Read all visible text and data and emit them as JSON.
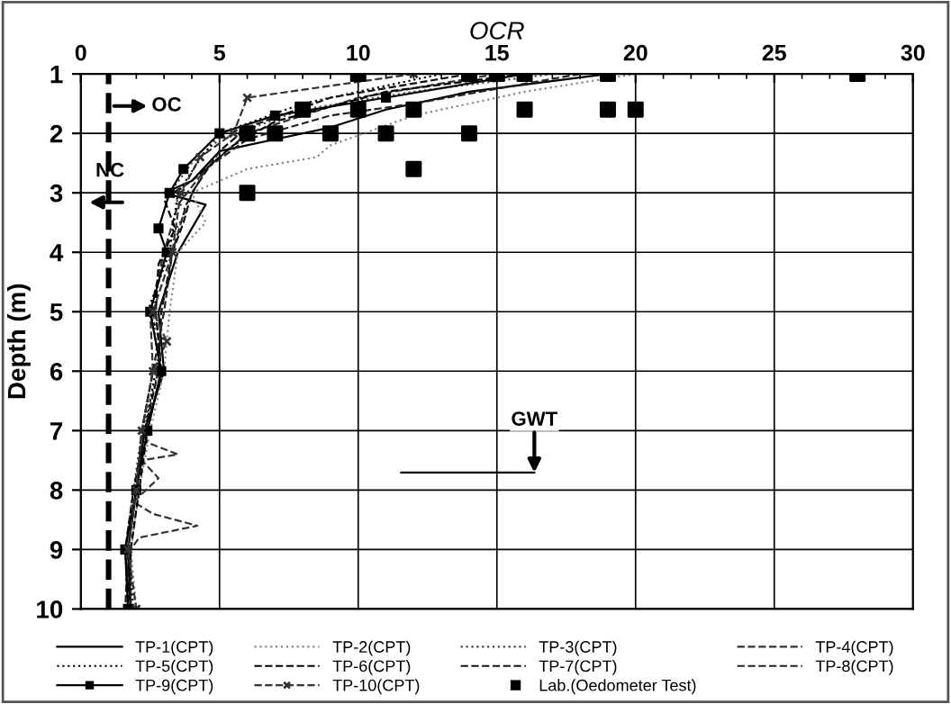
{
  "chart_data": {
    "type": "line",
    "xlabel": "OCR",
    "ylabel": "Depth (m)",
    "xlim": [
      0,
      30
    ],
    "xticks": [
      0,
      5,
      10,
      15,
      20,
      25,
      30
    ],
    "ylim": [
      10,
      1
    ],
    "yticks": [
      1,
      2,
      3,
      4,
      5,
      6,
      7,
      8,
      9,
      10
    ],
    "grid": true,
    "legend": "bottom",
    "ref_lines": [
      {
        "axis": "x",
        "value": 1,
        "label": null,
        "color": "#000000",
        "line_style": "dashed"
      }
    ],
    "annotations": [
      "OC",
      "NC",
      "GWT"
    ],
    "series": [
      {
        "name": "TP-1(CPT)",
        "color": "#000000",
        "line_style": "solid",
        "marker": "none",
        "x": [
          19,
          14,
          11,
          9,
          7,
          5,
          4,
          3,
          4.5,
          3.5,
          2.8,
          3,
          2.3,
          2,
          1.7,
          1.8
        ],
        "values": [
          1,
          1.3,
          1.6,
          1.9,
          2.1,
          2.3,
          2.8,
          3,
          3.2,
          4,
          5,
          6,
          7,
          8,
          9,
          10
        ]
      },
      {
        "name": "TP-2(CPT)",
        "color": "#888888",
        "line_style": "dotted",
        "marker": "none",
        "x": [
          20,
          16,
          12,
          9,
          8.5,
          6,
          4,
          4.5,
          3.5,
          3.2,
          3,
          2.5,
          2.1,
          1.8,
          2
        ],
        "values": [
          1,
          1.3,
          1.7,
          2.2,
          2.4,
          2.6,
          3,
          3.5,
          4,
          5,
          6,
          7,
          8,
          9,
          10
        ]
      },
      {
        "name": "TP-3(CPT)",
        "color": "#444444",
        "line_style": "dotted",
        "marker": "none",
        "x": [
          17,
          12,
          8,
          5,
          4,
          3.2,
          3.8,
          3,
          2.6,
          2.8,
          2.2,
          1.9,
          1.6,
          1.7
        ],
        "values": [
          1,
          1.3,
          1.6,
          2.1,
          2.5,
          3,
          3.3,
          4,
          5,
          6,
          7,
          8,
          9,
          10
        ]
      },
      {
        "name": "TP-4(CPT)",
        "color": "#333333",
        "line_style": "dashed",
        "marker": "none",
        "x": [
          15,
          10,
          6,
          4.5,
          3.5,
          3,
          2.5,
          2.6,
          2.2,
          2.4,
          3.5,
          2.2,
          2.8,
          1.9,
          2.6,
          4.2,
          2.1,
          1.8,
          1.8
        ],
        "values": [
          1,
          1.4,
          2,
          2.6,
          3.2,
          4,
          5,
          6,
          7,
          7.2,
          7.4,
          7.5,
          7.8,
          8.2,
          8.4,
          8.6,
          8.8,
          9,
          10
        ]
      },
      {
        "name": "TP-5(CPT)",
        "color": "#000000",
        "line_style": "dotted",
        "marker": "none",
        "x": [
          13,
          8,
          5,
          4.2,
          3.5,
          3.2,
          2.4,
          3,
          2.7,
          2.3,
          2,
          1.7,
          1.9
        ],
        "values": [
          1,
          1.5,
          2,
          2.5,
          3,
          4,
          5,
          5.5,
          6,
          7,
          8,
          9,
          10
        ]
      },
      {
        "name": "TP-6(CPT)",
        "color": "#000000",
        "line_style": "dashed",
        "marker": "none",
        "x": [
          16,
          11,
          7,
          5.5,
          4,
          3,
          3.4,
          2.8,
          2.7,
          2.9,
          2.4,
          2.1,
          1.8,
          1.7
        ],
        "values": [
          1,
          1.3,
          1.8,
          2.2,
          2.8,
          3.1,
          3.6,
          4.2,
          5,
          6,
          7,
          8,
          9,
          10
        ]
      },
      {
        "name": "TP-7(CPT)",
        "color": "#111111",
        "line_style": "dashed",
        "marker": "none",
        "x": [
          14,
          9,
          6,
          5,
          4,
          3.7,
          3.3,
          2.9,
          2.8,
          2.3,
          1.9,
          1.6,
          1.8
        ],
        "values": [
          1,
          1.4,
          1.9,
          2.3,
          3,
          3.5,
          4,
          5,
          6,
          7,
          8,
          9,
          10
        ]
      },
      {
        "name": "TP-8(CPT)",
        "color": "#222222",
        "line_style": "dashed",
        "marker": "none",
        "x": [
          18,
          12,
          9,
          6,
          4.5,
          3.8,
          3.3,
          3,
          2.6,
          2.2,
          2,
          1.7,
          1.6
        ],
        "values": [
          1,
          1.5,
          1.7,
          2.1,
          2.6,
          3.2,
          4,
          5,
          6,
          7,
          8,
          9,
          10
        ]
      },
      {
        "name": "TP-9(CPT)",
        "color": "#000000",
        "line_style": "solid",
        "marker": "square",
        "x": [
          16,
          11,
          7,
          5,
          3.7,
          3.2,
          2.8,
          3.1,
          2.5,
          2.9,
          2.4,
          2,
          1.6,
          1.7
        ],
        "values": [
          1,
          1.4,
          1.7,
          2,
          2.6,
          3,
          3.6,
          4,
          5,
          6,
          7,
          8,
          9,
          10
        ]
      },
      {
        "name": "TP-10(CPT)",
        "color": "#333333",
        "line_style": "dashed",
        "marker": "cross",
        "x": [
          12,
          6,
          5.5,
          4.3,
          3.6,
          3.3,
          2.6,
          3.1,
          2.6,
          2.2,
          2,
          1.7,
          2
        ],
        "values": [
          1,
          1.4,
          2,
          2.4,
          3,
          4,
          5,
          5.5,
          6,
          7,
          8,
          9,
          10
        ]
      },
      {
        "name": "Lab.(Oedometer Test)",
        "type": "scatter",
        "color": "#000000",
        "marker": "square",
        "x": [
          10,
          14,
          15,
          16,
          19,
          28,
          8,
          10,
          12,
          16,
          19,
          20,
          6,
          7,
          9,
          11,
          14,
          12,
          6
        ],
        "values": [
          1,
          1,
          1,
          1,
          1,
          1,
          1.6,
          1.6,
          1.6,
          1.6,
          1.6,
          1.6,
          2,
          2,
          2,
          2,
          2,
          2.6,
          3
        ]
      }
    ]
  }
}
